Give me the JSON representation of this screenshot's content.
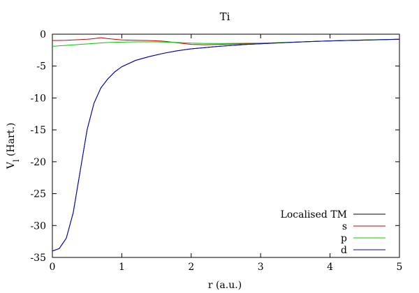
{
  "chart_data": {
    "type": "line",
    "title": "Ti",
    "xlabel": "r (a.u.)",
    "ylabel": {
      "main": "V",
      "sub": "l",
      "rest": " (Hart.)"
    },
    "xlim": [
      0,
      5
    ],
    "ylim": [
      -35,
      0
    ],
    "xticks": [
      0,
      1,
      2,
      3,
      4,
      5
    ],
    "yticks": [
      0,
      -5,
      -10,
      -15,
      -20,
      -25,
      -30,
      -35
    ],
    "grid": false,
    "legend_position": "bottom-right",
    "series": [
      {
        "name": "Localised TM",
        "color": "#000000",
        "x": [
          0,
          0.1,
          0.2,
          0.3,
          0.4,
          0.5,
          0.6,
          0.7,
          0.8,
          0.9,
          1.0,
          1.2,
          1.4,
          1.6,
          1.8,
          2.0,
          2.2,
          2.4,
          2.6,
          2.8,
          3.0,
          3.2,
          3.4,
          3.6,
          3.8,
          4.0,
          4.2,
          4.4,
          4.6,
          4.8,
          5.0
        ],
        "y": [
          -34.0,
          -33.6,
          -32.0,
          -28.0,
          -21.5,
          -15.0,
          -10.8,
          -8.4,
          -7.0,
          -5.9,
          -5.1,
          -4.1,
          -3.5,
          -3.0,
          -2.6,
          -2.3,
          -2.1,
          -1.9,
          -1.75,
          -1.6,
          -1.5,
          -1.4,
          -1.3,
          -1.2,
          -1.12,
          -1.05,
          -1.0,
          -0.95,
          -0.9,
          -0.85,
          -0.8
        ]
      },
      {
        "name": "s",
        "color": "#cc0000",
        "x": [
          0,
          0.2,
          0.4,
          0.5,
          0.6,
          0.7,
          0.8,
          1.0,
          1.2,
          1.4,
          1.6,
          1.8,
          2.0,
          2.2,
          2.4,
          2.6,
          3.0,
          3.5,
          4.0,
          4.5,
          5.0
        ],
        "y": [
          -1.0,
          -0.95,
          -0.85,
          -0.8,
          -0.7,
          -0.55,
          -0.7,
          -0.9,
          -0.95,
          -1.0,
          -1.1,
          -1.35,
          -1.6,
          -1.65,
          -1.6,
          -1.55,
          -1.45,
          -1.25,
          -1.05,
          -0.9,
          -0.8
        ]
      },
      {
        "name": "p",
        "color": "#00cc00",
        "x": [
          0,
          0.2,
          0.4,
          0.6,
          0.8,
          1.0,
          1.2,
          1.5,
          1.8,
          2.0,
          2.2,
          2.5,
          3.0,
          3.5,
          4.0,
          4.5,
          5.0
        ],
        "y": [
          -1.9,
          -1.75,
          -1.6,
          -1.45,
          -1.3,
          -1.25,
          -1.2,
          -1.2,
          -1.3,
          -1.4,
          -1.45,
          -1.45,
          -1.4,
          -1.25,
          -1.05,
          -0.9,
          -0.8
        ]
      },
      {
        "name": "d",
        "color": "#0000cc",
        "x": [
          0,
          0.1,
          0.2,
          0.3,
          0.4,
          0.5,
          0.6,
          0.7,
          0.8,
          0.9,
          1.0,
          1.2,
          1.4,
          1.6,
          1.8,
          2.0,
          2.2,
          2.4,
          2.6,
          2.8,
          3.0,
          3.2,
          3.4,
          3.6,
          3.8,
          4.0,
          4.2,
          4.4,
          4.6,
          4.8,
          5.0
        ],
        "y": [
          -34.0,
          -33.6,
          -32.0,
          -28.0,
          -21.5,
          -15.0,
          -10.8,
          -8.4,
          -7.0,
          -5.9,
          -5.1,
          -4.1,
          -3.5,
          -3.0,
          -2.6,
          -2.3,
          -2.1,
          -1.9,
          -1.75,
          -1.6,
          -1.5,
          -1.4,
          -1.3,
          -1.2,
          -1.12,
          -1.05,
          -1.0,
          -0.95,
          -0.9,
          -0.85,
          -0.8
        ]
      }
    ]
  }
}
